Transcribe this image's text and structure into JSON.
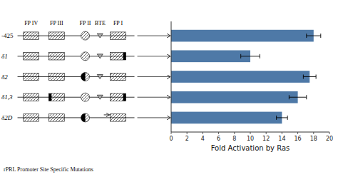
{
  "chart_data": {
    "type": "bar",
    "orientation": "horizontal",
    "categories": [
      "-425",
      "δ1",
      "δ2",
      "δ1,3",
      "δ2D"
    ],
    "values": [
      18.0,
      10.0,
      17.5,
      16.0,
      14.0
    ],
    "errors": [
      0.9,
      1.2,
      0.8,
      1.1,
      0.7
    ],
    "color": "#4e79a7",
    "xlim": [
      0,
      20
    ],
    "xticks": [
      0,
      2,
      4,
      6,
      8,
      10,
      12,
      14,
      16,
      18,
      20
    ],
    "xlabel": "Fold  Activation by Ras",
    "ylabel": "rPRL Promoter Site Specific Mutations",
    "annotations": [
      "FP IV",
      "FP III",
      "FP II",
      "BTE",
      "FP I"
    ],
    "grid": false
  }
}
